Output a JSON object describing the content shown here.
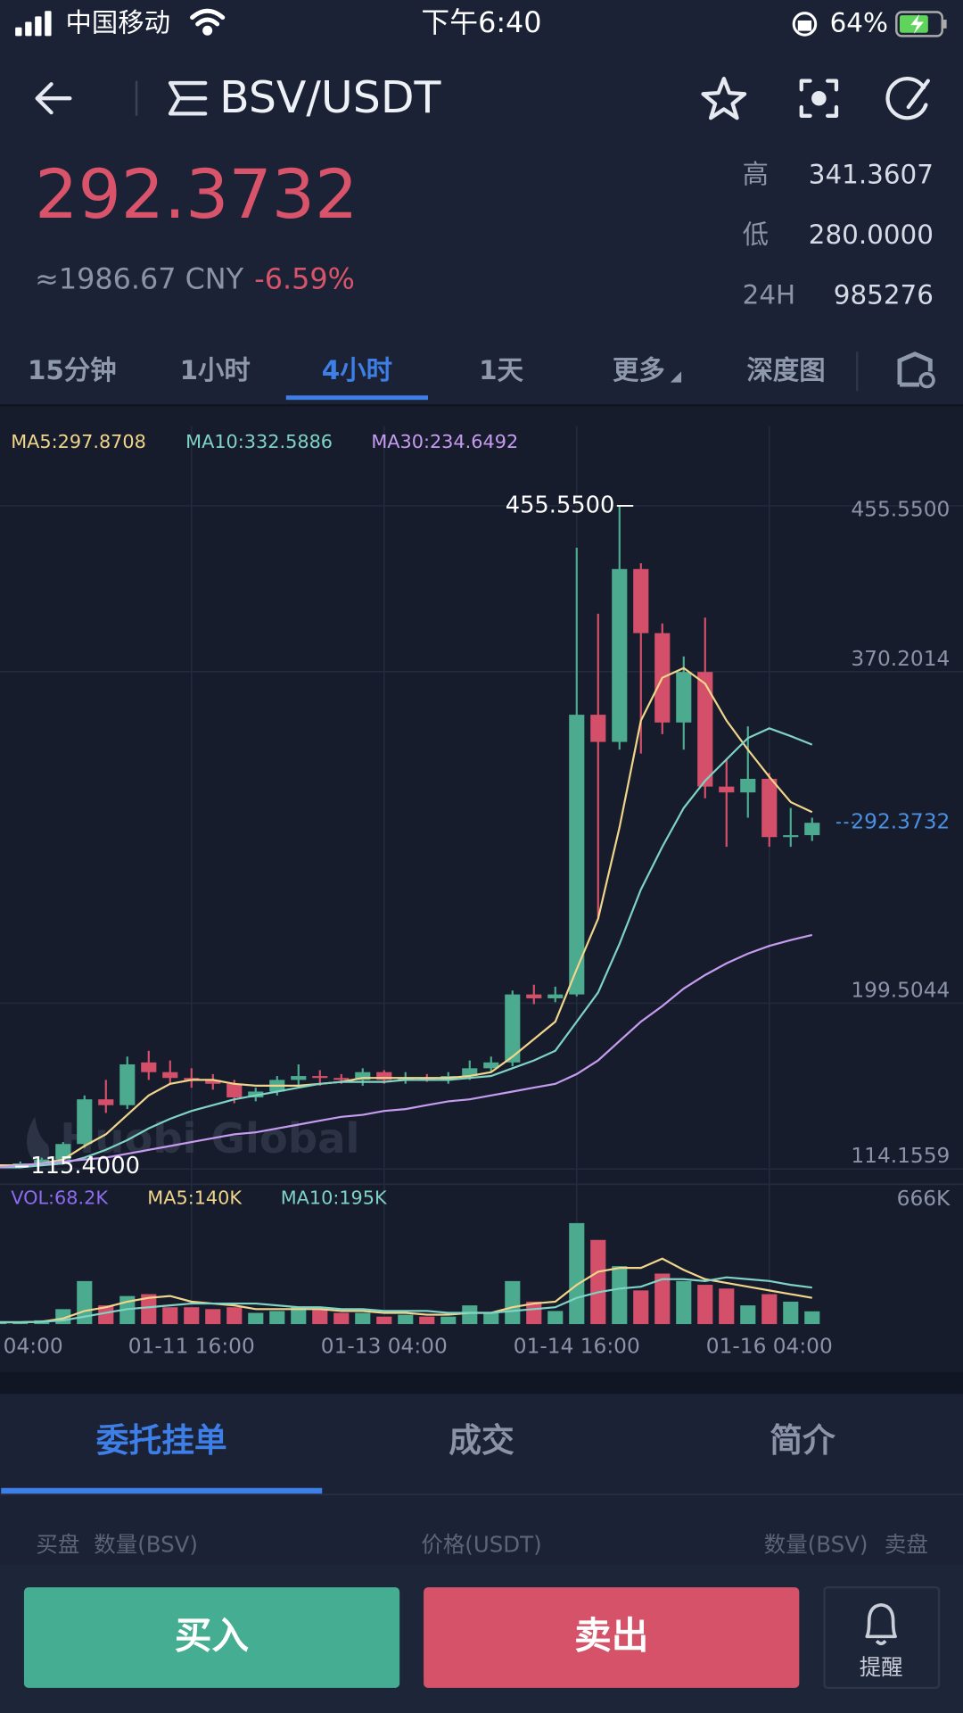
{
  "status_bar": {
    "carrier": "中国移动",
    "time": "下午6:40",
    "battery": "64%"
  },
  "header": {
    "pair": "BSV/USDT"
  },
  "price": {
    "last": "292.3732",
    "cny": "≈1986.67 CNY",
    "change": "-6.59%"
  },
  "stats": [
    {
      "label": "高",
      "value": "341.3607"
    },
    {
      "label": "低",
      "value": "280.0000"
    },
    {
      "label": "24H",
      "value": "985276"
    }
  ],
  "periods": {
    "items": [
      "15分钟",
      "1小时",
      "4小时",
      "1天",
      "更多",
      "深度图"
    ],
    "selected": 2
  },
  "chart_data": {
    "type": "candlestick",
    "watermark": "Huobi Global",
    "up_color": "#4caa8f",
    "down_color": "#d4506a",
    "categories": [
      "04:00",
      null,
      null,
      null,
      null,
      null,
      null,
      null,
      null,
      "01-11 16:00",
      null,
      null,
      null,
      null,
      null,
      null,
      null,
      null,
      "01-13 04:00",
      null,
      null,
      null,
      null,
      null,
      null,
      null,
      null,
      "01-14 16:00",
      null,
      null,
      null,
      null,
      null,
      null,
      null,
      null,
      "01-16 04:00",
      null,
      null
    ],
    "open": [
      116,
      116.5,
      117,
      119,
      127,
      150,
      147,
      169,
      164,
      161,
      160,
      158,
      151,
      154,
      160,
      162,
      161,
      160,
      164,
      160,
      161,
      160,
      162,
      166,
      169,
      204,
      202,
      204,
      348,
      334,
      423,
      390,
      344,
      370,
      311,
      308,
      315,
      285,
      286
    ],
    "high": [
      117,
      118,
      120,
      128,
      152,
      160,
      172,
      175,
      170,
      166,
      163,
      160,
      156,
      162,
      168,
      165,
      163,
      166,
      165,
      164,
      163,
      164,
      170,
      172,
      206,
      209,
      208,
      434,
      400,
      455.55,
      426,
      395,
      378,
      398,
      325,
      342,
      318,
      300,
      295
    ],
    "low": [
      115.4,
      115.6,
      116,
      118,
      125,
      143,
      145,
      160,
      158,
      156,
      155,
      148,
      149,
      152,
      157,
      157,
      158,
      157,
      158,
      158,
      159,
      158,
      160,
      164,
      167,
      199,
      200,
      203,
      244,
      330,
      328,
      338,
      330,
      305,
      280,
      295,
      280,
      280,
      283
    ],
    "close": [
      116.5,
      117,
      119,
      127,
      150,
      147,
      168,
      164,
      161,
      160,
      158,
      151,
      154,
      160,
      162,
      161,
      160,
      164,
      160,
      161,
      160,
      162,
      166,
      169,
      204,
      202,
      204,
      348,
      334,
      423,
      390,
      344,
      370,
      311,
      308,
      315,
      285,
      286,
      292.3732
    ],
    "series": [
      {
        "name": "MA5:297.8708",
        "color": "#f0d58a",
        "values": [
          116,
          116,
          117,
          119,
          126,
          132,
          142,
          152,
          158,
          160,
          160,
          158,
          157,
          157,
          157,
          158,
          159,
          161,
          161,
          161,
          161,
          161,
          162,
          164,
          172,
          181,
          190,
          217,
          243,
          290,
          345,
          367,
          372,
          364,
          345,
          330,
          316,
          303,
          297.8708
        ]
      },
      {
        "name": "MA10:332.5886",
        "color": "#7fd3c5",
        "values": [
          115,
          115,
          116,
          117,
          120,
          124,
          129,
          135,
          140,
          144,
          147,
          150,
          152,
          154,
          156,
          158,
          159,
          159,
          159,
          160,
          160,
          160,
          161,
          162,
          166,
          170,
          175,
          190,
          205,
          230,
          258,
          280,
          300,
          314,
          325,
          336,
          341,
          337,
          332.5886
        ]
      },
      {
        "name": "MA30:234.6492",
        "color": "#c79cf0",
        "values": [
          115,
          116,
          117,
          118,
          119,
          120,
          122,
          124,
          126,
          128,
          130,
          132,
          133,
          135,
          137,
          139,
          141,
          142,
          144,
          145,
          147,
          149,
          150,
          152,
          154,
          156,
          158,
          163,
          170,
          180,
          190,
          198,
          207,
          214,
          220,
          225,
          229,
          232,
          234.6492
        ]
      }
    ],
    "ylim": [
      110,
      470
    ],
    "yticks": [
      114.1559,
      199.5044,
      370.2014,
      {
        "value": 455.55,
        "label": "455.5500"
      }
    ],
    "grid": true,
    "last_price": 292.3732,
    "max_label": {
      "value": 455.55,
      "label": "455.5500"
    },
    "min_label": {
      "value": 115.4,
      "label": "115.4000"
    },
    "volume": {
      "label": "VOL:68.2K",
      "color": "#8e6cf0",
      "values": [
        10,
        10,
        20,
        80,
        230,
        100,
        150,
        160,
        90,
        90,
        80,
        90,
        60,
        70,
        90,
        80,
        60,
        60,
        40,
        50,
        40,
        40,
        100,
        60,
        230,
        120,
        70,
        540,
        450,
        310,
        180,
        270,
        230,
        210,
        190,
        100,
        160,
        120,
        68.2
      ],
      "series": [
        {
          "name": "MA5:140K",
          "color": "#f0d58a",
          "values": [
            10,
            10,
            13,
            30,
            70,
            90,
            120,
            140,
            150,
            120,
            110,
            100,
            80,
            80,
            80,
            80,
            70,
            70,
            60,
            60,
            50,
            50,
            60,
            60,
            90,
            110,
            120,
            210,
            280,
            300,
            300,
            350,
            290,
            240,
            220,
            200,
            180,
            160,
            140
          ]
        },
        {
          "name": "MA10:195K",
          "color": "#7fd3c5",
          "values": [
            10,
            10,
            12,
            20,
            40,
            60,
            80,
            90,
            100,
            110,
            110,
            110,
            110,
            100,
            90,
            90,
            80,
            80,
            70,
            70,
            70,
            60,
            60,
            60,
            70,
            80,
            90,
            140,
            170,
            190,
            200,
            240,
            240,
            230,
            250,
            240,
            230,
            210,
            195
          ]
        }
      ],
      "ylim": [
        0,
        666
      ],
      "yticks": [
        {
          "value": 666,
          "label": "666K"
        }
      ]
    }
  },
  "tabs": {
    "items": [
      "委托挂单",
      "成交",
      "简介"
    ],
    "selected": 0
  },
  "order_header": {
    "bid": "买盘",
    "bid_amount": "数量(BSV)",
    "price": "价格(USDT)",
    "ask_amount": "数量(BSV)",
    "ask": "卖盘"
  },
  "buttons": {
    "buy": "买入",
    "sell": "卖出",
    "alert": "提醒"
  }
}
